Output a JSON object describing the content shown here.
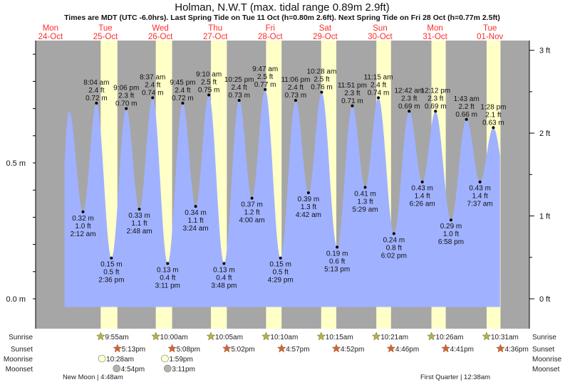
{
  "header": {
    "title": "Holman, N.W.T (max. tidal range 0.89m 2.9ft)",
    "subtitle": "Times are MDT (UTC -6.0hrs). Last Spring Tide on Tue 11 Oct (h=0.80m 2.6ft). Next Spring Tide on Fri 28 Oct (h=0.77m 2.5ft)"
  },
  "colors": {
    "night": "#a6a6a6",
    "day": "#ffffc8",
    "water": "#a0b2ff",
    "day_label": "#ff2a2a",
    "sun": "#b8b43a",
    "sunset": "#e0602a",
    "moonrise": "#ffffd0",
    "moonset": "#b4b4a8"
  },
  "days": [
    {
      "dow": "Mon",
      "date": "24-Oct"
    },
    {
      "dow": "Tue",
      "date": "25-Oct"
    },
    {
      "dow": "Wed",
      "date": "26-Oct"
    },
    {
      "dow": "Thu",
      "date": "27-Oct"
    },
    {
      "dow": "Fri",
      "date": "28-Oct"
    },
    {
      "dow": "Sat",
      "date": "29-Oct"
    },
    {
      "dow": "Sun",
      "date": "30-Oct"
    },
    {
      "dow": "Mon",
      "date": "31-Oct"
    },
    {
      "dow": "Tue",
      "date": "01-Nov"
    }
  ],
  "chart_data": {
    "type": "area",
    "title": "Holman, N.W.T (max. tidal range 0.89m 2.9ft)",
    "x_unit": "hours since Mon 24-Oct 00:00 MDT",
    "ylabel_left": "m",
    "ylabel_right": "ft",
    "ylim_m": [
      -0.11,
      0.95
    ],
    "left_ticks": [
      "0.0 m",
      "0.5 m"
    ],
    "left_tick_values": [
      0.0,
      0.5
    ],
    "right_ticks": [
      "0 ft",
      "1 ft",
      "2 ft",
      "3 ft"
    ],
    "right_tick_values_ft": [
      0,
      1,
      2,
      3
    ],
    "extremes": [
      {
        "t": 20.1,
        "m": 0.69,
        "type": "high",
        "labeled": false
      },
      {
        "t": 26.2,
        "m": 0.32,
        "ft": "1.0 ft",
        "mtxt": "0.32 m",
        "time": "2:12 am",
        "type": "low"
      },
      {
        "t": 32.07,
        "m": 0.72,
        "ft": "2.4 ft",
        "mtxt": "0.72 m",
        "time": "8:04 am",
        "type": "high"
      },
      {
        "t": 38.6,
        "m": 0.15,
        "ft": "0.5 ft",
        "mtxt": "0.15 m",
        "time": "2:36 pm",
        "type": "low"
      },
      {
        "t": 45.1,
        "m": 0.7,
        "ft": "2.3 ft",
        "mtxt": "0.70 m",
        "time": "9:06 pm",
        "type": "high"
      },
      {
        "t": 50.8,
        "m": 0.33,
        "ft": "1.1 ft",
        "mtxt": "0.33 m",
        "time": "2:48 am",
        "type": "low"
      },
      {
        "t": 56.62,
        "m": 0.74,
        "ft": "2.4 ft",
        "mtxt": "0.74 m",
        "time": "8:37 am",
        "type": "high"
      },
      {
        "t": 63.18,
        "m": 0.13,
        "ft": "0.4 ft",
        "mtxt": "0.13 m",
        "time": "3:11 pm",
        "type": "low"
      },
      {
        "t": 69.75,
        "m": 0.72,
        "ft": "2.4 ft",
        "mtxt": "0.72 m",
        "time": "9:45 pm",
        "type": "high"
      },
      {
        "t": 75.4,
        "m": 0.34,
        "ft": "1.1 ft",
        "mtxt": "0.34 m",
        "time": "3:24 am",
        "type": "low"
      },
      {
        "t": 81.17,
        "m": 0.75,
        "ft": "2.5 ft",
        "mtxt": "0.75 m",
        "time": "9:10 am",
        "type": "high"
      },
      {
        "t": 87.8,
        "m": 0.13,
        "ft": "0.4 ft",
        "mtxt": "0.13 m",
        "time": "3:48 pm",
        "type": "low"
      },
      {
        "t": 94.42,
        "m": 0.73,
        "ft": "2.4 ft",
        "mtxt": "0.73 m",
        "time": "10:25 pm",
        "type": "high"
      },
      {
        "t": 100.0,
        "m": 0.37,
        "ft": "1.2 ft",
        "mtxt": "0.37 m",
        "time": "4:00 am",
        "type": "low"
      },
      {
        "t": 105.78,
        "m": 0.77,
        "ft": "2.5 ft",
        "mtxt": "0.77 m",
        "time": "9:47 am",
        "type": "high"
      },
      {
        "t": 112.48,
        "m": 0.15,
        "ft": "0.5 ft",
        "mtxt": "0.15 m",
        "time": "4:29 pm",
        "type": "low"
      },
      {
        "t": 119.1,
        "m": 0.73,
        "ft": "2.4 ft",
        "mtxt": "0.73 m",
        "time": "11:06 pm",
        "type": "high"
      },
      {
        "t": 124.7,
        "m": 0.39,
        "ft": "1.3 ft",
        "mtxt": "0.39 m",
        "time": "4:42 am",
        "type": "low"
      },
      {
        "t": 130.47,
        "m": 0.76,
        "ft": "2.5 ft",
        "mtxt": "0.76 m",
        "time": "10:28 am",
        "type": "high"
      },
      {
        "t": 137.22,
        "m": 0.19,
        "ft": "0.6 ft",
        "mtxt": "0.19 m",
        "time": "5:13 pm",
        "type": "low"
      },
      {
        "t": 143.85,
        "m": 0.71,
        "ft": "2.3 ft",
        "mtxt": "0.71 m",
        "time": "11:51 pm",
        "type": "high"
      },
      {
        "t": 149.48,
        "m": 0.41,
        "ft": "1.3 ft",
        "mtxt": "0.41 m",
        "time": "5:29 am",
        "type": "low"
      },
      {
        "t": 155.25,
        "m": 0.74,
        "ft": "2.4 ft",
        "mtxt": "0.74 m",
        "time": "11:15 am",
        "type": "high"
      },
      {
        "t": 162.03,
        "m": 0.24,
        "ft": "0.8 ft",
        "mtxt": "0.24 m",
        "time": "6:02 pm",
        "type": "low"
      },
      {
        "t": 168.7,
        "m": 0.69,
        "ft": "2.3 ft",
        "mtxt": "0.69 m",
        "time": "12:42 am",
        "type": "high"
      },
      {
        "t": 174.43,
        "m": 0.43,
        "ft": "1.4 ft",
        "mtxt": "0.43 m",
        "time": "6:26 am",
        "type": "low"
      },
      {
        "t": 180.2,
        "m": 0.69,
        "ft": "2.3 ft",
        "mtxt": "0.69 m",
        "time": "12:12 pm",
        "type": "high"
      },
      {
        "t": 186.97,
        "m": 0.29,
        "ft": "1.0 ft",
        "mtxt": "0.29 m",
        "time": "6:58 pm",
        "type": "low"
      },
      {
        "t": 193.72,
        "m": 0.66,
        "ft": "2.2 ft",
        "mtxt": "0.66 m",
        "time": "1:43 am",
        "type": "high"
      },
      {
        "t": 199.62,
        "m": 0.43,
        "ft": "1.4 ft",
        "mtxt": "0.43 m",
        "time": "7:37 am",
        "type": "low"
      },
      {
        "t": 205.47,
        "m": 0.63,
        "ft": "2.1 ft",
        "mtxt": "0.63 m",
        "time": "1:28 pm",
        "type": "high"
      }
    ]
  },
  "rows": {
    "sunrise": "Sunrise",
    "sunset": "Sunset",
    "moonrise": "Moonrise",
    "moonset": "Moonset"
  },
  "sunrise": [
    {
      "t": 33.92,
      "label": "9:55am"
    },
    {
      "t": 58.0,
      "label": "10:00am"
    },
    {
      "t": 82.08,
      "label": "10:05am"
    },
    {
      "t": 106.17,
      "label": "10:10am"
    },
    {
      "t": 130.25,
      "label": "10:15am"
    },
    {
      "t": 154.35,
      "label": "10:21am"
    },
    {
      "t": 178.43,
      "label": "10:26am"
    },
    {
      "t": 202.52,
      "label": "10:31am"
    }
  ],
  "sunset": [
    {
      "t": 41.22,
      "label": "5:13pm"
    },
    {
      "t": 65.13,
      "label": "5:08pm"
    },
    {
      "t": 89.03,
      "label": "5:02pm"
    },
    {
      "t": 112.95,
      "label": "4:57pm"
    },
    {
      "t": 136.87,
      "label": "4:52pm"
    },
    {
      "t": 160.77,
      "label": "4:46pm"
    },
    {
      "t": 184.68,
      "label": "4:41pm"
    },
    {
      "t": 208.6,
      "label": "4:36pm"
    }
  ],
  "moonrise": [
    {
      "t": 34.47,
      "label": "10:28am"
    },
    {
      "t": 61.98,
      "label": "1:59pm"
    }
  ],
  "moonset": [
    {
      "t": 40.9,
      "label": "4:54pm"
    },
    {
      "t": 63.18,
      "label": "3:11pm"
    }
  ],
  "moon_phases": [
    {
      "phase": "New Moon | 4:48am"
    },
    {
      "phase": "First Quarter | 12:38am"
    }
  ]
}
